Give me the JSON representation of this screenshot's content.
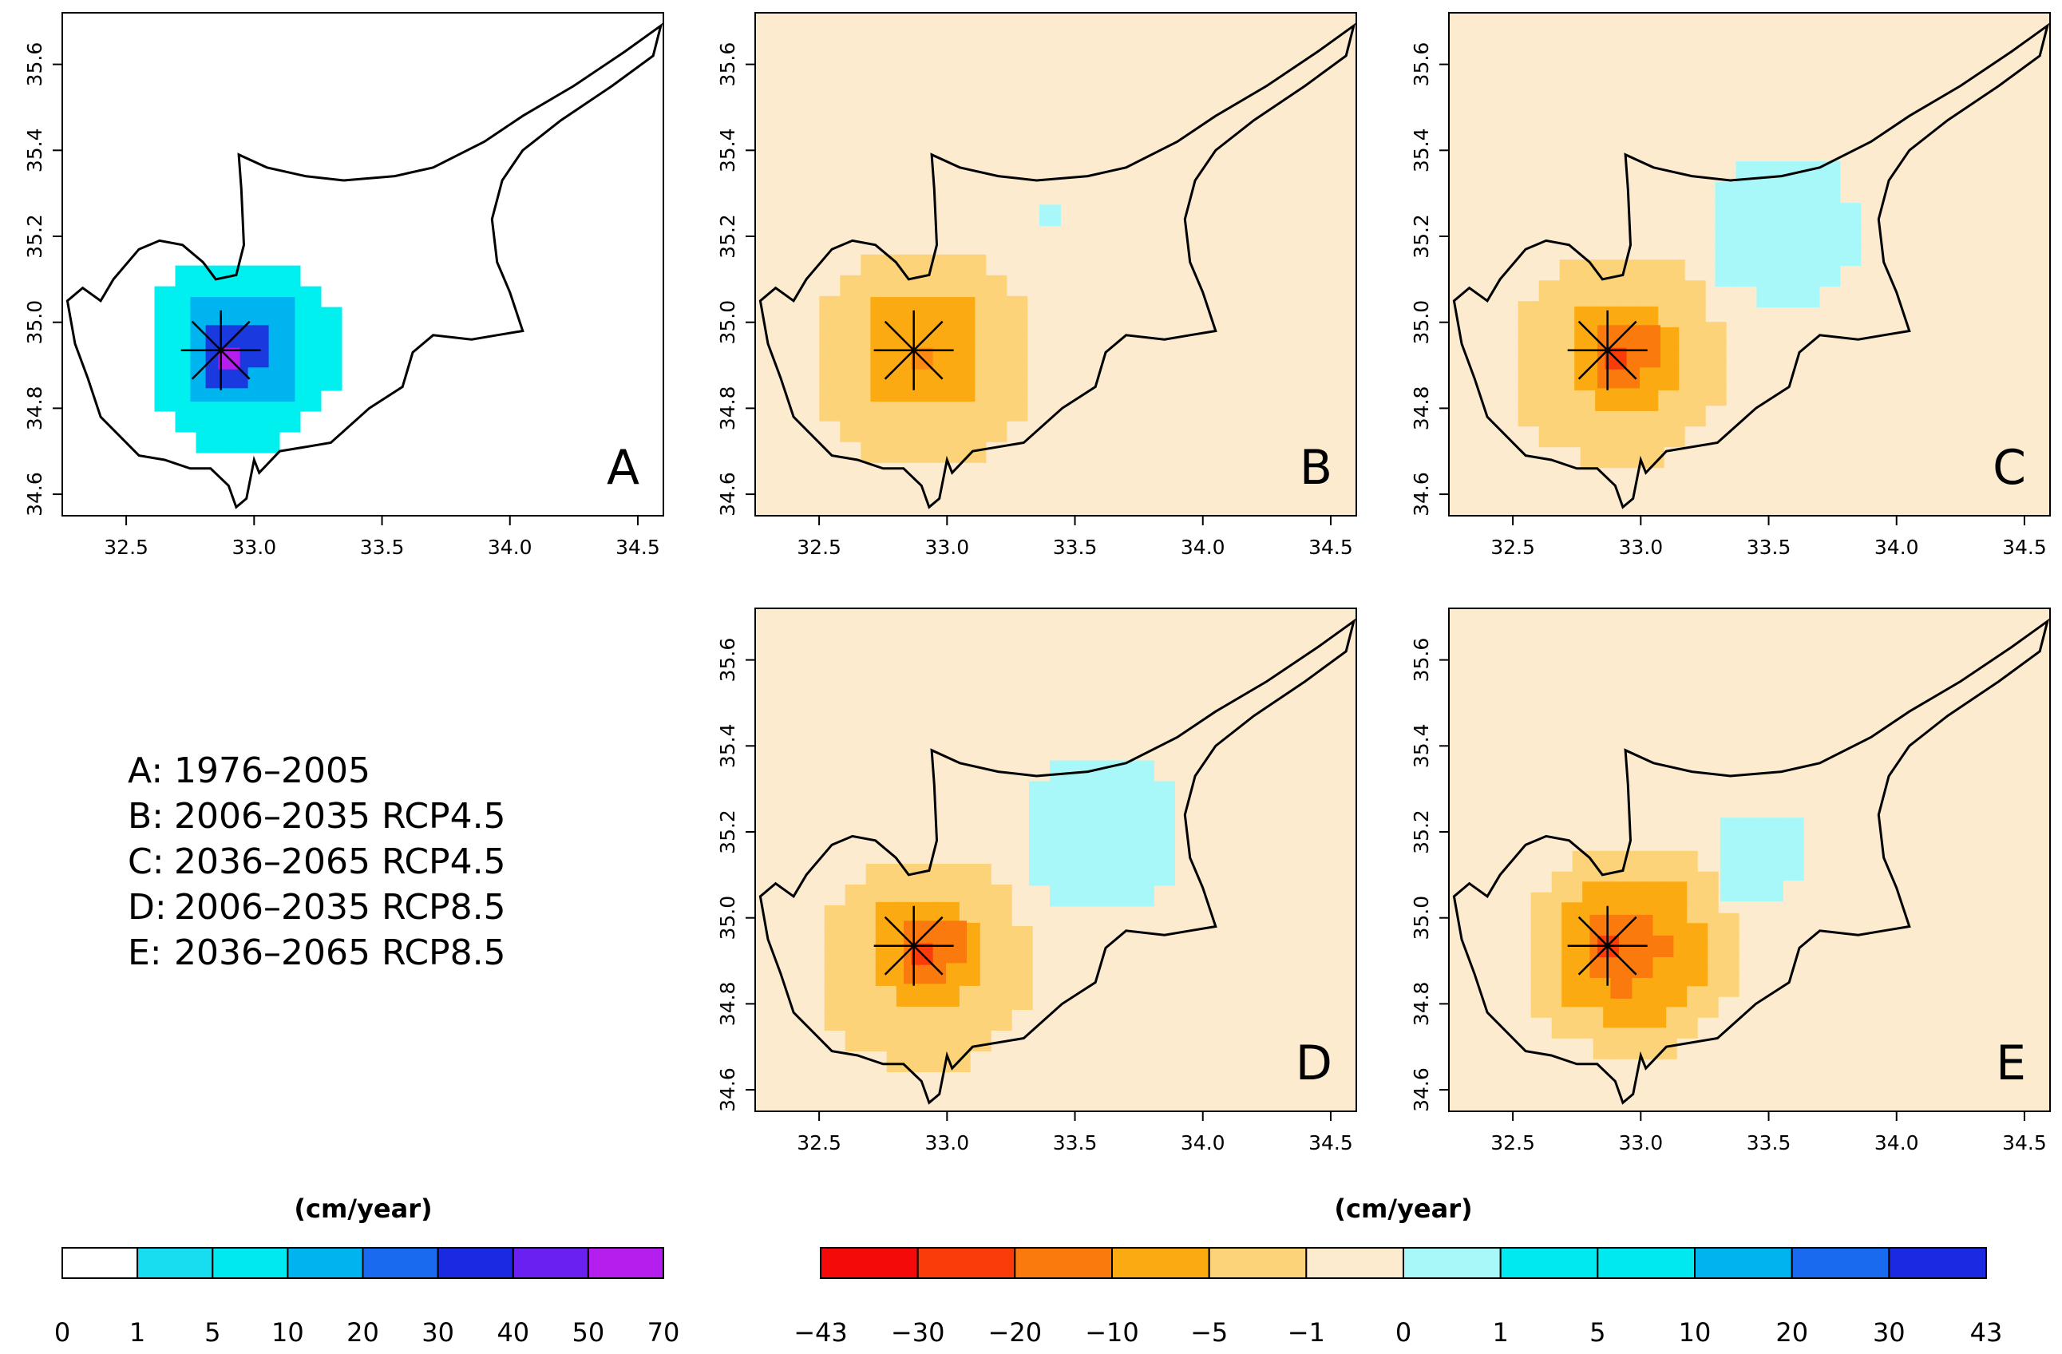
{
  "legend": [
    {
      "key": "A:",
      "text": "1976–2005"
    },
    {
      "key": "B:",
      "text": "2006–2035 RCP4.5"
    },
    {
      "key": "C:",
      "text": "2036–2065 RCP4.5"
    },
    {
      "key": "D:",
      "text": "2006–2035 RCP8.5"
    },
    {
      "key": "E:",
      "text": "2036–2065 RCP8.5"
    }
  ],
  "map_extent": {
    "lon": [
      32.25,
      34.6
    ],
    "lat": [
      34.55,
      35.72
    ]
  },
  "x_ticks": [
    "32.5",
    "33.0",
    "33.5",
    "34.0",
    "34.5"
  ],
  "x_tick_values": [
    32.5,
    33.0,
    33.5,
    34.0,
    34.5
  ],
  "y_ticks": [
    "34.6",
    "34.8",
    "35.0",
    "35.2",
    "35.4",
    "35.6"
  ],
  "y_tick_values": [
    34.6,
    34.8,
    35.0,
    35.2,
    35.4,
    35.6
  ],
  "site_marker": {
    "lon": 32.87,
    "lat": 34.935
  },
  "colors": {
    "land_outline": "#000000",
    "positive_bg": "#ffffff",
    "change_bg": "#fdebd0"
  },
  "panels": [
    {
      "id": "A",
      "label": "A",
      "period": "1976–2005",
      "background": "#ffffff",
      "blobs": [
        {
          "lon": 32.95,
          "lat": 34.93,
          "r": 0.38,
          "color": "#00f0f0"
        },
        {
          "lon": 32.95,
          "lat": 34.94,
          "r": 0.24,
          "color": "#00b4f0"
        },
        {
          "lon": 32.9,
          "lat": 34.94,
          "r": 0.13,
          "color": "#1a3ae0"
        },
        {
          "lon": 32.87,
          "lat": 34.935,
          "r": 0.05,
          "color": "#b41fee"
        }
      ]
    },
    {
      "id": "B",
      "label": "B",
      "period": "2006–2035 RCP4.5",
      "background": "#fdebd0",
      "blobs": [
        {
          "lon": 32.9,
          "lat": 34.92,
          "r": 0.44,
          "color": "#fdd37a"
        },
        {
          "lon": 32.9,
          "lat": 34.94,
          "r": 0.24,
          "color": "#fbaa12"
        },
        {
          "lon": 32.87,
          "lat": 34.935,
          "r": 0.05,
          "color": "#fb8a12"
        },
        {
          "lon": 33.4,
          "lat": 35.25,
          "r": 0.08,
          "color": "#a8f8fa"
        }
      ]
    },
    {
      "id": "C",
      "label": "C",
      "period": "2036–2065 RCP4.5",
      "background": "#fdebd0",
      "blobs": [
        {
          "lon": 33.55,
          "lat": 35.22,
          "r": 0.3,
          "color": "#a8f8fa"
        },
        {
          "lon": 32.9,
          "lat": 34.92,
          "r": 0.42,
          "color": "#fdd37a"
        },
        {
          "lon": 32.92,
          "lat": 34.93,
          "r": 0.22,
          "color": "#fbaa12"
        },
        {
          "lon": 32.92,
          "lat": 34.94,
          "r": 0.13,
          "color": "#fa7a0e"
        },
        {
          "lon": 32.87,
          "lat": 34.935,
          "r": 0.05,
          "color": "#fa3b0a"
        }
      ]
    },
    {
      "id": "D",
      "label": "D",
      "period": "2006–2035 RCP8.5",
      "background": "#fdebd0",
      "blobs": [
        {
          "lon": 33.6,
          "lat": 35.2,
          "r": 0.32,
          "color": "#a8f8fa"
        },
        {
          "lon": 32.9,
          "lat": 34.9,
          "r": 0.42,
          "color": "#fdd37a"
        },
        {
          "lon": 32.9,
          "lat": 34.93,
          "r": 0.22,
          "color": "#fbaa12"
        },
        {
          "lon": 32.92,
          "lat": 34.94,
          "r": 0.13,
          "color": "#fa7a0e"
        },
        {
          "lon": 32.87,
          "lat": 34.935,
          "r": 0.05,
          "color": "#fa3b0a"
        }
      ]
    },
    {
      "id": "E",
      "label": "E",
      "period": "2036–2065 RCP8.5",
      "background": "#fdebd0",
      "blobs": [
        {
          "lon": 33.45,
          "lat": 35.15,
          "r": 0.18,
          "color": "#a8f8fa"
        },
        {
          "lon": 32.95,
          "lat": 34.93,
          "r": 0.42,
          "color": "#fdd37a"
        },
        {
          "lon": 32.95,
          "lat": 34.93,
          "r": 0.3,
          "color": "#fbaa12"
        },
        {
          "lon": 32.93,
          "lat": 34.93,
          "r": 0.17,
          "color": "#fa7a0e"
        },
        {
          "lon": 32.87,
          "lat": 34.935,
          "r": 0.08,
          "color": "#fa3b0a"
        }
      ]
    }
  ],
  "colorbars": [
    {
      "id": "positive",
      "unit": "(cm/year)",
      "breaks": [
        "0",
        "1",
        "5",
        "10",
        "20",
        "30",
        "40",
        "50",
        "70"
      ],
      "colors": [
        "#ffffff",
        "#18dcf0",
        "#00e8f0",
        "#00b4f0",
        "#1a6af0",
        "#1a2ae0",
        "#6a20f0",
        "#b41fee"
      ]
    },
    {
      "id": "change",
      "unit": "(cm/year)",
      "breaks": [
        "−43",
        "−30",
        "−20",
        "−10",
        "−5",
        "−1",
        "0",
        "1",
        "5",
        "10",
        "20",
        "30",
        "43"
      ],
      "colors": [
        "#f50a0a",
        "#fa3b0a",
        "#fa7a0e",
        "#fbaa12",
        "#fdd37a",
        "#fdebd0",
        "#a8f8fa",
        "#00e8f0",
        "#00e8f0",
        "#00b4f0",
        "#1a6af0",
        "#1a2ae0"
      ]
    }
  ]
}
